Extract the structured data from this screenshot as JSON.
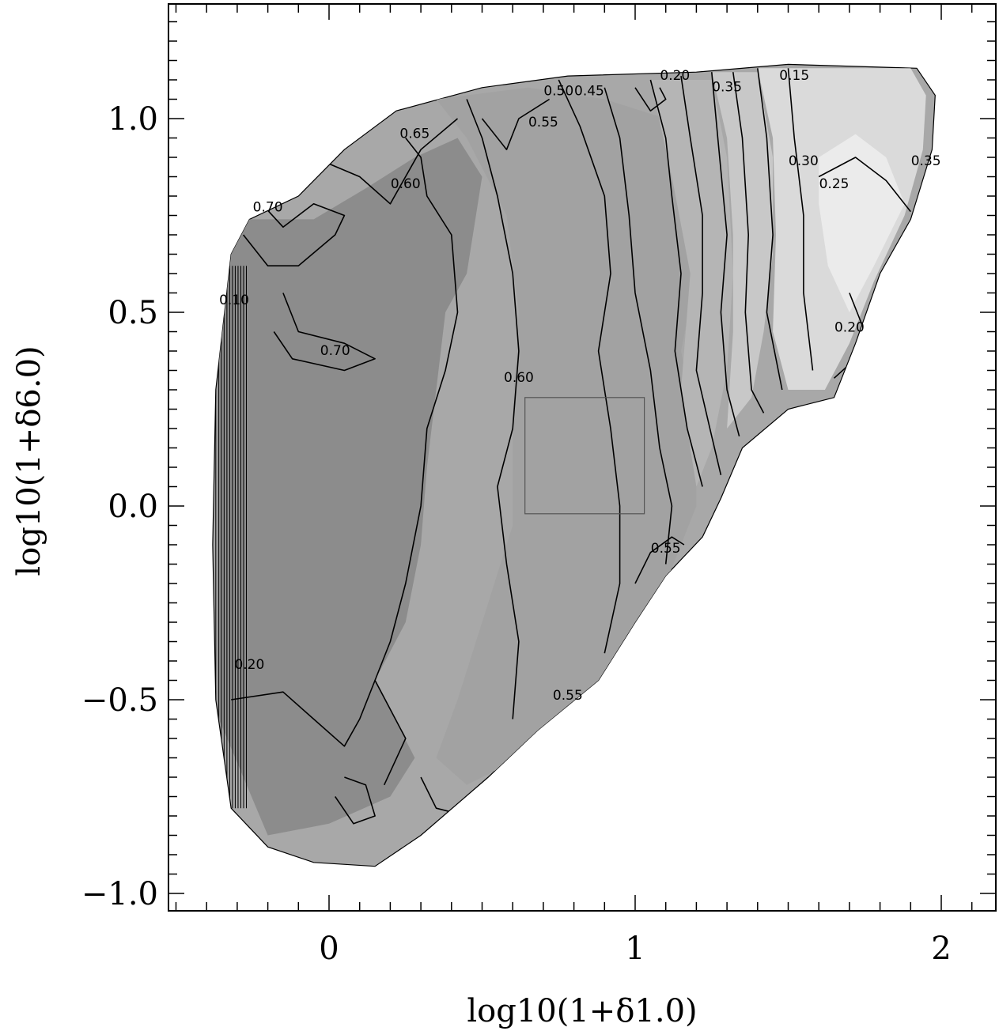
{
  "chart_data": {
    "type": "contour",
    "xlabel": "log10(1+δ1.0)",
    "ylabel": "log10(1+δ6.0)",
    "xlim": [
      -0.52,
      2.2
    ],
    "ylim": [
      -1.04,
      1.3
    ],
    "x_ticks": [
      {
        "value": 0,
        "label": "0"
      },
      {
        "value": 1,
        "label": "1"
      },
      {
        "value": 2,
        "label": "2"
      }
    ],
    "y_ticks": [
      {
        "value": -1.0,
        "label": "−1.0"
      },
      {
        "value": -0.5,
        "label": "−0.5"
      },
      {
        "value": 0.0,
        "label": "0.0"
      },
      {
        "value": 0.5,
        "label": "0.5"
      },
      {
        "value": 1.0,
        "label": "1.0"
      }
    ],
    "fill_levels": [
      {
        "min": 0.65,
        "color": "#8c8c8c"
      },
      {
        "min": 0.55,
        "color": "#a2a2a2"
      },
      {
        "min": 0.45,
        "color": "#b5b5b5"
      },
      {
        "min": 0.35,
        "color": "#c8c8c8"
      },
      {
        "min": 0.25,
        "color": "#dadada"
      },
      {
        "min": 0.15,
        "color": "#ebebeb"
      }
    ],
    "domain_outline": [
      [
        -0.32,
        0.65
      ],
      [
        -0.26,
        0.74
      ],
      [
        -0.1,
        0.8
      ],
      [
        0.05,
        0.92
      ],
      [
        0.22,
        1.02
      ],
      [
        0.5,
        1.08
      ],
      [
        0.78,
        1.11
      ],
      [
        1.2,
        1.12
      ],
      [
        1.5,
        1.14
      ],
      [
        1.92,
        1.13
      ],
      [
        1.98,
        1.06
      ],
      [
        1.97,
        0.92
      ],
      [
        1.9,
        0.74
      ],
      [
        1.8,
        0.6
      ],
      [
        1.72,
        0.42
      ],
      [
        1.65,
        0.28
      ],
      [
        1.5,
        0.25
      ],
      [
        1.35,
        0.15
      ],
      [
        1.28,
        0.02
      ],
      [
        1.22,
        -0.08
      ],
      [
        1.1,
        -0.18
      ],
      [
        1.0,
        -0.3
      ],
      [
        0.88,
        -0.45
      ],
      [
        0.68,
        -0.58
      ],
      [
        0.52,
        -0.7
      ],
      [
        0.3,
        -0.85
      ],
      [
        0.15,
        -0.93
      ],
      [
        -0.05,
        -0.92
      ],
      [
        -0.2,
        -0.88
      ],
      [
        -0.32,
        -0.78
      ],
      [
        -0.37,
        -0.5
      ],
      [
        -0.38,
        -0.1
      ],
      [
        -0.37,
        0.3
      ]
    ],
    "regions": [
      {
        "value": 0.65,
        "polygon": [
          [
            -0.36,
            -0.55
          ],
          [
            -0.36,
            0.6
          ],
          [
            -0.28,
            0.74
          ],
          [
            -0.05,
            0.74
          ],
          [
            0.12,
            0.82
          ],
          [
            0.28,
            0.9
          ],
          [
            0.42,
            0.95
          ],
          [
            0.5,
            0.85
          ],
          [
            0.45,
            0.6
          ],
          [
            0.38,
            0.5
          ],
          [
            0.35,
            0.3
          ],
          [
            0.32,
            0.1
          ],
          [
            0.3,
            -0.1
          ],
          [
            0.25,
            -0.3
          ],
          [
            0.15,
            -0.45
          ],
          [
            0.28,
            -0.65
          ],
          [
            0.2,
            -0.75
          ],
          [
            0.0,
            -0.82
          ],
          [
            -0.2,
            -0.85
          ]
        ]
      },
      {
        "value": 0.55,
        "polygon": [
          [
            0.35,
            1.05
          ],
          [
            0.65,
            1.08
          ],
          [
            0.9,
            1.05
          ],
          [
            1.1,
            1.0
          ],
          [
            1.15,
            0.8
          ],
          [
            1.2,
            0.6
          ],
          [
            1.15,
            0.4
          ],
          [
            1.2,
            0.2
          ],
          [
            1.2,
            0.0
          ],
          [
            1.1,
            -0.2
          ],
          [
            0.95,
            -0.4
          ],
          [
            0.78,
            -0.55
          ],
          [
            0.6,
            -0.66
          ],
          [
            0.45,
            -0.72
          ],
          [
            0.35,
            -0.65
          ],
          [
            0.42,
            -0.5
          ],
          [
            0.5,
            -0.3
          ],
          [
            0.6,
            -0.05
          ],
          [
            0.6,
            0.25
          ],
          [
            0.62,
            0.5
          ],
          [
            0.58,
            0.75
          ],
          [
            0.45,
            0.95
          ]
        ]
      },
      {
        "value": 0.45,
        "polygon": [
          [
            1.05,
            1.1
          ],
          [
            1.25,
            1.1
          ],
          [
            1.3,
            0.9
          ],
          [
            1.32,
            0.6
          ],
          [
            1.3,
            0.35
          ],
          [
            1.25,
            0.15
          ],
          [
            1.2,
            0.05
          ],
          [
            1.15,
            0.3
          ],
          [
            1.18,
            0.6
          ],
          [
            1.12,
            0.85
          ]
        ]
      },
      {
        "value": 0.35,
        "polygon": [
          [
            1.25,
            1.12
          ],
          [
            1.4,
            1.12
          ],
          [
            1.45,
            0.9
          ],
          [
            1.45,
            0.65
          ],
          [
            1.42,
            0.45
          ],
          [
            1.38,
            0.28
          ],
          [
            1.3,
            0.2
          ],
          [
            1.32,
            0.45
          ],
          [
            1.32,
            0.7
          ],
          [
            1.3,
            0.95
          ]
        ]
      },
      {
        "value": 0.25,
        "polygon": [
          [
            1.4,
            1.13
          ],
          [
            1.9,
            1.13
          ],
          [
            1.95,
            1.06
          ],
          [
            1.94,
            0.92
          ],
          [
            1.88,
            0.75
          ],
          [
            1.78,
            0.58
          ],
          [
            1.7,
            0.42
          ],
          [
            1.62,
            0.3
          ],
          [
            1.5,
            0.3
          ],
          [
            1.45,
            0.45
          ],
          [
            1.46,
            0.7
          ],
          [
            1.45,
            0.95
          ]
        ]
      },
      {
        "value": 0.15,
        "polygon": [
          [
            1.6,
            0.9
          ],
          [
            1.72,
            0.96
          ],
          [
            1.82,
            0.9
          ],
          [
            1.88,
            0.78
          ],
          [
            1.78,
            0.62
          ],
          [
            1.7,
            0.5
          ],
          [
            1.63,
            0.62
          ],
          [
            1.6,
            0.78
          ]
        ]
      }
    ],
    "contour_lines": [
      [
        [
          0.25,
          0.95
        ],
        [
          0.3,
          0.9
        ],
        [
          0.32,
          0.8
        ],
        [
          0.4,
          0.7
        ],
        [
          0.42,
          0.5
        ],
        [
          0.38,
          0.35
        ],
        [
          0.32,
          0.2
        ],
        [
          0.3,
          0.0
        ],
        [
          0.25,
          -0.2
        ],
        [
          0.2,
          -0.35
        ],
        [
          0.15,
          -0.45
        ],
        [
          0.25,
          -0.6
        ],
        [
          0.18,
          -0.72
        ]
      ],
      [
        [
          0.45,
          1.05
        ],
        [
          0.5,
          0.95
        ],
        [
          0.55,
          0.8
        ],
        [
          0.6,
          0.6
        ],
        [
          0.62,
          0.4
        ],
        [
          0.6,
          0.2
        ],
        [
          0.55,
          0.05
        ],
        [
          0.58,
          -0.15
        ],
        [
          0.62,
          -0.35
        ],
        [
          0.6,
          -0.55
        ]
      ],
      [
        [
          0.75,
          1.1
        ],
        [
          0.82,
          0.98
        ],
        [
          0.9,
          0.8
        ],
        [
          0.92,
          0.6
        ],
        [
          0.88,
          0.4
        ],
        [
          0.92,
          0.2
        ],
        [
          0.95,
          0.0
        ],
        [
          0.95,
          -0.2
        ],
        [
          0.9,
          -0.38
        ]
      ],
      [
        [
          0.9,
          1.08
        ],
        [
          0.95,
          0.95
        ],
        [
          0.98,
          0.75
        ],
        [
          1.0,
          0.55
        ],
        [
          1.05,
          0.35
        ],
        [
          1.08,
          0.15
        ],
        [
          1.12,
          0.0
        ],
        [
          1.1,
          -0.15
        ]
      ],
      [
        [
          1.05,
          1.1
        ],
        [
          1.1,
          0.95
        ],
        [
          1.12,
          0.8
        ],
        [
          1.15,
          0.6
        ],
        [
          1.13,
          0.4
        ],
        [
          1.17,
          0.2
        ],
        [
          1.22,
          0.05
        ]
      ],
      [
        [
          1.15,
          1.11
        ],
        [
          1.18,
          0.95
        ],
        [
          1.22,
          0.75
        ],
        [
          1.22,
          0.55
        ],
        [
          1.2,
          0.35
        ],
        [
          1.25,
          0.18
        ],
        [
          1.28,
          0.08
        ]
      ],
      [
        [
          1.25,
          1.12
        ],
        [
          1.27,
          0.95
        ],
        [
          1.3,
          0.7
        ],
        [
          1.28,
          0.5
        ],
        [
          1.3,
          0.3
        ],
        [
          1.34,
          0.18
        ]
      ],
      [
        [
          1.32,
          1.12
        ],
        [
          1.35,
          0.95
        ],
        [
          1.37,
          0.7
        ],
        [
          1.36,
          0.5
        ],
        [
          1.38,
          0.3
        ],
        [
          1.42,
          0.24
        ]
      ],
      [
        [
          1.4,
          1.13
        ],
        [
          1.43,
          0.95
        ],
        [
          1.45,
          0.7
        ],
        [
          1.43,
          0.5
        ],
        [
          1.48,
          0.3
        ]
      ],
      [
        [
          1.5,
          1.13
        ],
        [
          1.52,
          0.95
        ],
        [
          1.55,
          0.75
        ],
        [
          1.55,
          0.55
        ],
        [
          1.58,
          0.35
        ]
      ],
      [
        [
          1.6,
          0.85
        ],
        [
          1.72,
          0.9
        ],
        [
          1.82,
          0.84
        ],
        [
          1.9,
          0.76
        ]
      ],
      [
        [
          1.7,
          0.55
        ],
        [
          1.75,
          0.45
        ],
        [
          1.72,
          0.38
        ],
        [
          1.65,
          0.33
        ]
      ],
      [
        [
          -0.22,
          0.78
        ],
        [
          -0.15,
          0.72
        ],
        [
          -0.05,
          0.78
        ],
        [
          0.05,
          0.75
        ],
        [
          0.02,
          0.7
        ],
        [
          -0.1,
          0.62
        ],
        [
          -0.2,
          0.62
        ],
        [
          -0.28,
          0.7
        ]
      ],
      [
        [
          -0.15,
          0.55
        ],
        [
          -0.1,
          0.45
        ],
        [
          0.05,
          0.42
        ],
        [
          0.15,
          0.38
        ],
        [
          0.05,
          0.35
        ],
        [
          -0.12,
          0.38
        ],
        [
          -0.18,
          0.45
        ]
      ],
      [
        [
          -0.05,
          0.9
        ],
        [
          0.1,
          0.85
        ],
        [
          0.2,
          0.78
        ],
        [
          0.3,
          0.92
        ],
        [
          0.42,
          1.0
        ]
      ],
      [
        [
          0.5,
          1.0
        ],
        [
          0.58,
          0.92
        ],
        [
          0.62,
          1.0
        ],
        [
          0.72,
          1.05
        ]
      ],
      [
        [
          1.0,
          1.08
        ],
        [
          1.05,
          1.02
        ],
        [
          1.1,
          1.05
        ],
        [
          1.08,
          1.08
        ]
      ],
      [
        [
          -0.32,
          -0.5
        ],
        [
          -0.15,
          -0.48
        ],
        [
          -0.05,
          -0.55
        ],
        [
          0.05,
          -0.62
        ],
        [
          0.1,
          -0.55
        ],
        [
          0.15,
          -0.45
        ]
      ],
      [
        [
          0.3,
          -0.7
        ],
        [
          0.35,
          -0.78
        ],
        [
          0.45,
          -0.8
        ],
        [
          0.52,
          -0.72
        ]
      ],
      [
        [
          0.02,
          -0.75
        ],
        [
          0.08,
          -0.82
        ],
        [
          0.15,
          -0.8
        ],
        [
          0.12,
          -0.72
        ],
        [
          0.05,
          -0.7
        ]
      ],
      [
        [
          1.0,
          -0.2
        ],
        [
          1.05,
          -0.12
        ],
        [
          1.12,
          -0.08
        ],
        [
          1.16,
          -0.1
        ]
      ]
    ],
    "steep_wall": {
      "x_from": -0.37,
      "x_to": -0.27,
      "y_from": -0.78,
      "y_to": 0.62,
      "lines": 12
    },
    "contour_labels": [
      {
        "text": "0.15",
        "x": 1.52,
        "y": 1.1
      },
      {
        "text": "0.20",
        "x": 1.13,
        "y": 1.1
      },
      {
        "text": "0.35",
        "x": 1.3,
        "y": 1.07
      },
      {
        "text": "0.45",
        "x": 0.85,
        "y": 1.06
      },
      {
        "text": "0.50",
        "x": 0.75,
        "y": 1.06
      },
      {
        "text": "0.55",
        "x": 0.7,
        "y": 0.98
      },
      {
        "text": "0.65",
        "x": 0.28,
        "y": 0.95
      },
      {
        "text": "0.60",
        "x": 0.25,
        "y": 0.82
      },
      {
        "text": "0.70",
        "x": -0.2,
        "y": 0.76
      },
      {
        "text": "0.70",
        "x": 0.02,
        "y": 0.39
      },
      {
        "text": "0.60",
        "x": 0.62,
        "y": 0.32
      },
      {
        "text": "0.30",
        "x": 1.55,
        "y": 0.88
      },
      {
        "text": "0.25",
        "x": 1.65,
        "y": 0.82
      },
      {
        "text": "0.35",
        "x": 1.95,
        "y": 0.88
      },
      {
        "text": "0.20",
        "x": 1.7,
        "y": 0.45
      },
      {
        "text": "0.55",
        "x": 1.1,
        "y": -0.12
      },
      {
        "text": "0.55",
        "x": 0.78,
        "y": -0.5
      },
      {
        "text": "0.20",
        "x": -0.26,
        "y": -0.42
      },
      {
        "text": "0.10",
        "x": -0.31,
        "y": 0.52
      }
    ],
    "inset_box": {
      "x0": 0.64,
      "x1": 1.03,
      "y0": -0.02,
      "y1": 0.28
    },
    "grid": false,
    "legend": "none"
  }
}
